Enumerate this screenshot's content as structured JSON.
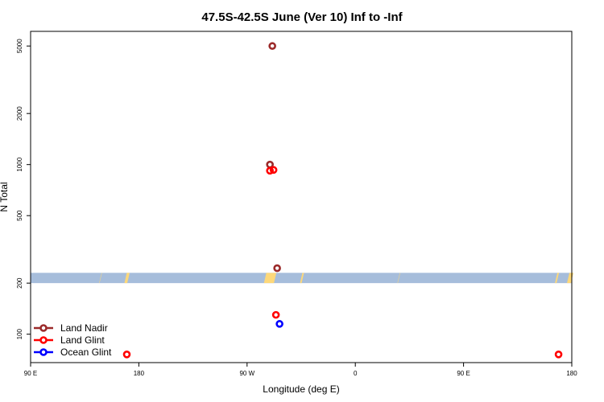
{
  "chart_data": {
    "type": "scatter",
    "title": "47.5S-42.5S June (Ver 10)   Inf to -Inf",
    "xlabel": "Longitude (deg E)",
    "ylabel": "N Total",
    "x_axis": {
      "range_deg_e": [
        90,
        540
      ],
      "ticks": [
        {
          "value": 90,
          "label": "90 E"
        },
        {
          "value": 180,
          "label": "180"
        },
        {
          "value": 270,
          "label": "90 W"
        },
        {
          "value": 360,
          "label": "0"
        },
        {
          "value": 450,
          "label": "90 E"
        },
        {
          "value": 540,
          "label": "180"
        }
      ]
    },
    "y_axis": {
      "scale": "log",
      "range": [
        68,
        6100
      ],
      "ticks": [
        {
          "value": 100,
          "label": "100"
        },
        {
          "value": 200,
          "label": "200"
        },
        {
          "value": 500,
          "label": "500"
        },
        {
          "value": 1000,
          "label": "1000"
        },
        {
          "value": 2000,
          "label": "2000"
        },
        {
          "value": 5000,
          "label": "5000"
        }
      ]
    },
    "map_strip": {
      "y_range": [
        200,
        230
      ],
      "ocean_color": "#a6bddb",
      "land_color": "#fdd87a",
      "land_spans": [
        [
          147,
          148
        ],
        [
          168,
          171
        ],
        [
          284,
          293
        ],
        [
          314,
          316
        ],
        [
          395,
          396
        ],
        [
          526,
          528
        ],
        [
          536,
          540
        ]
      ]
    },
    "series": [
      {
        "name": "Land Nadir",
        "color": "#9b2a2a",
        "points": [
          [
            291,
            5000
          ],
          [
            289,
            1000
          ],
          [
            295,
            245
          ]
        ]
      },
      {
        "name": "Land Glint",
        "color": "#ff0000",
        "points": [
          [
            289,
            920
          ],
          [
            292,
            930
          ],
          [
            294,
            130
          ],
          [
            170,
            76
          ],
          [
            529,
            76
          ]
        ]
      },
      {
        "name": "Ocean Glint",
        "color": "#0000ff",
        "points": [
          [
            297,
            115
          ]
        ]
      }
    ],
    "legend": {
      "placement": "bottom-left"
    },
    "grid": false
  }
}
